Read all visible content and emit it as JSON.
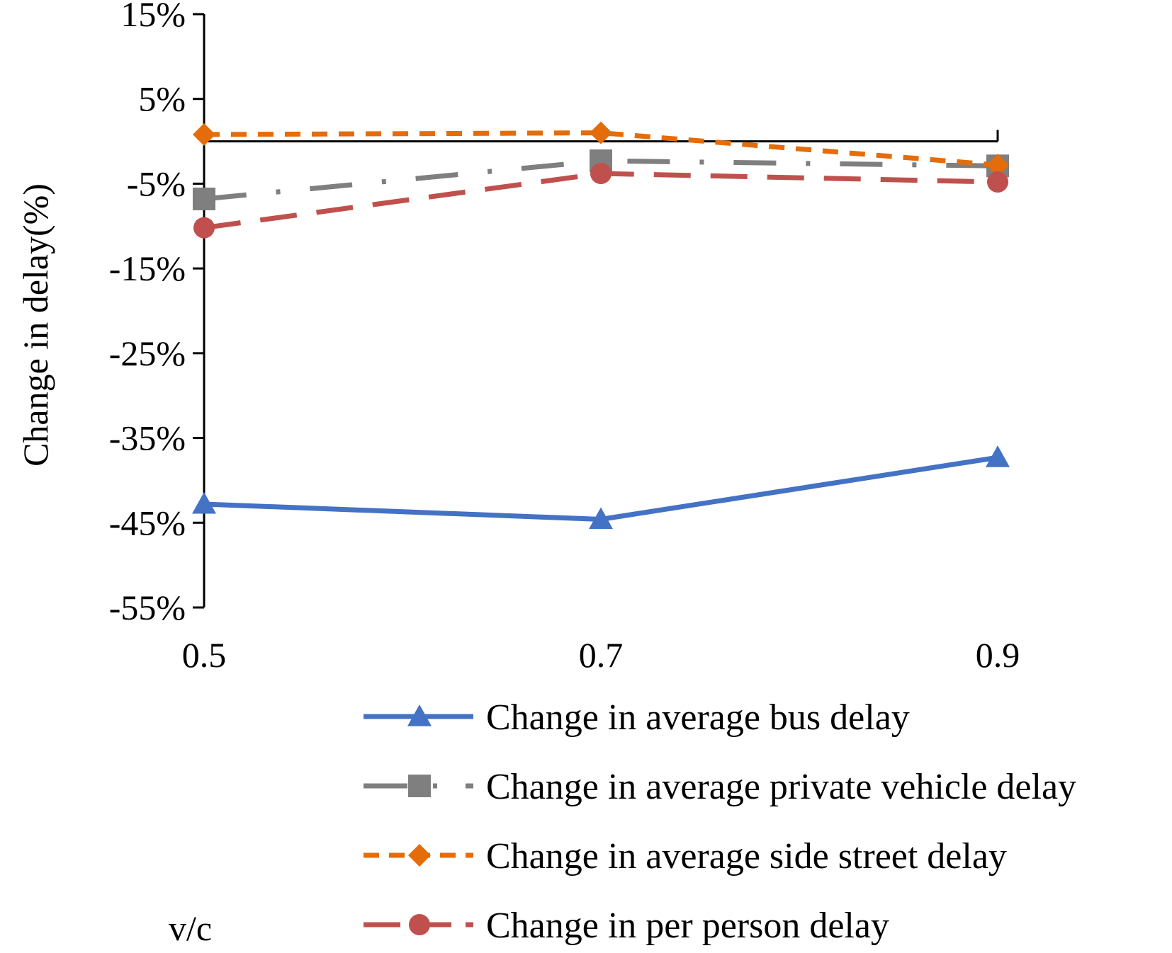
{
  "chart_data": {
    "type": "line",
    "title": "",
    "xlabel": "v/c",
    "ylabel": "Change in delay(%)",
    "x": [
      0.5,
      0.7,
      0.9
    ],
    "x_tick_labels": [
      "0.5",
      "0.7",
      "0.9"
    ],
    "ylim": [
      -55,
      15
    ],
    "y_ticks": [
      15,
      5,
      -5,
      -15,
      -25,
      -35,
      -45,
      -55
    ],
    "y_tick_labels": [
      "15%",
      "5%",
      "-5%",
      "-15%",
      "-25%",
      "-35%",
      "-45%",
      "-55%"
    ],
    "legend_position": "bottom",
    "series": [
      {
        "name": "Change in average bus delay",
        "values": [
          -42.8,
          -44.6,
          -37.3
        ],
        "color": "#4472C4",
        "marker": "triangle",
        "line_style": "solid"
      },
      {
        "name": "Change in average private vehicle delay",
        "values": [
          -6.8,
          -2.3,
          -2.9
        ],
        "color": "#7F7F7F",
        "marker": "square",
        "line_style": "dash-dot"
      },
      {
        "name": "Change in average side street delay",
        "values": [
          0.8,
          1.0,
          -2.8
        ],
        "color": "#E46C0A",
        "marker": "diamond",
        "line_style": "dash"
      },
      {
        "name": "Change in per person delay",
        "values": [
          -10.2,
          -3.8,
          -4.8
        ],
        "color": "#C0504D",
        "marker": "circle",
        "line_style": "long-dash"
      }
    ]
  }
}
